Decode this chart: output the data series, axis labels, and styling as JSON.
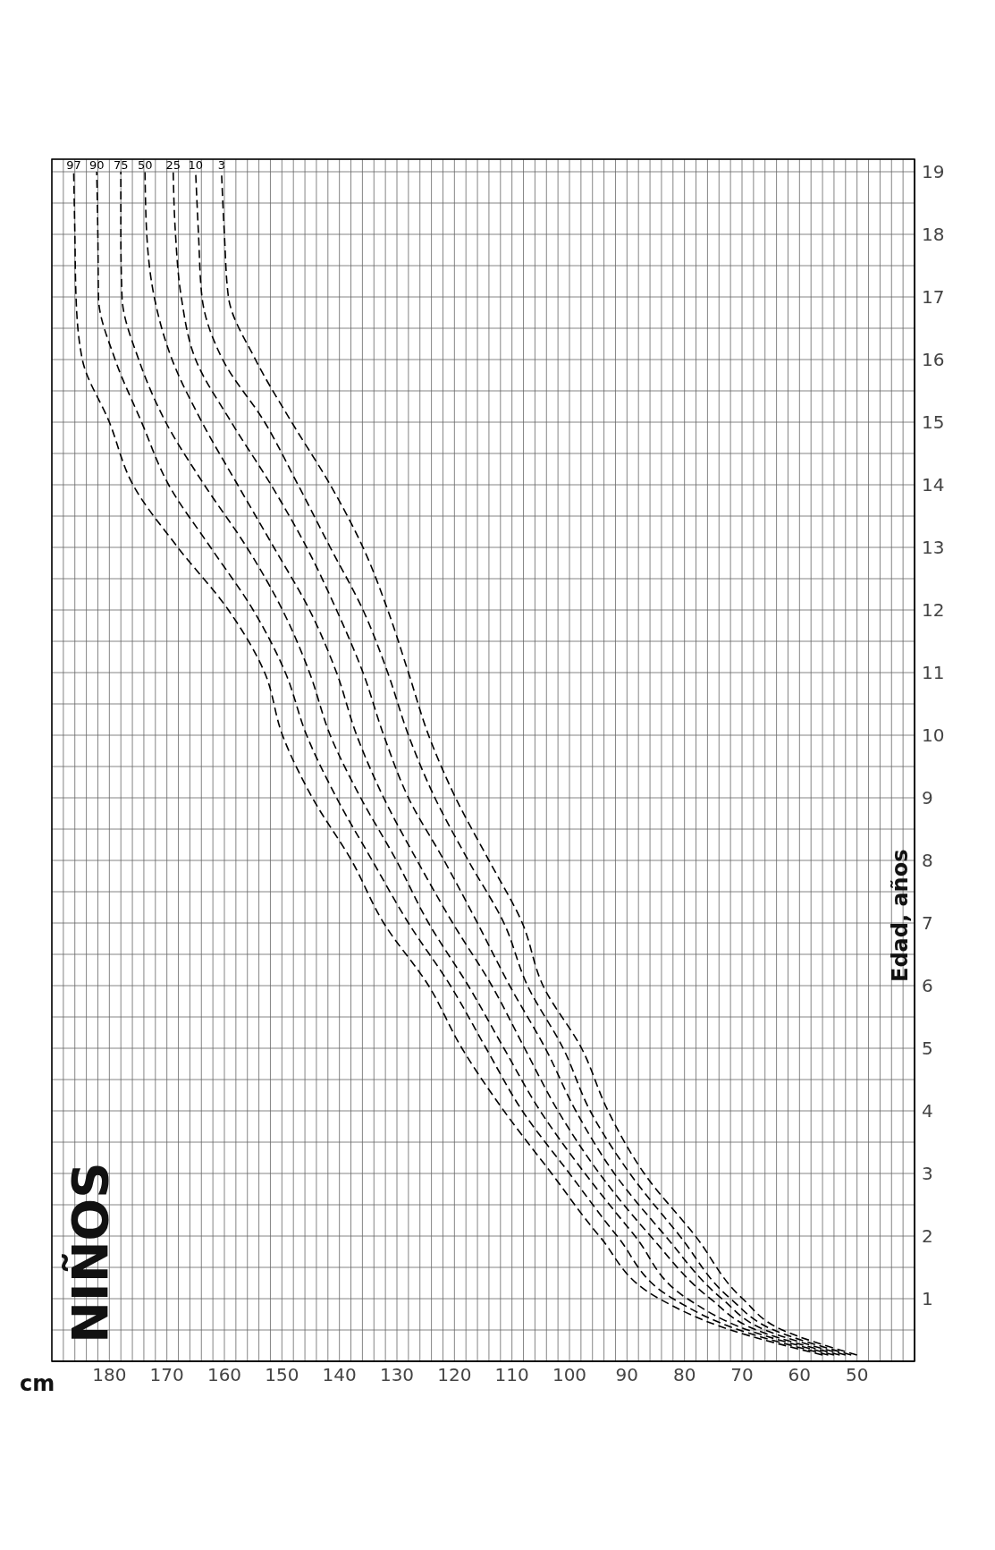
{
  "chart_data": {
    "type": "line",
    "title": "NIÑOS",
    "xlabel": "cm",
    "ylabel": "Edad, años",
    "series": [
      {
        "name": "97",
        "color": "#000000",
        "x": [
          56,
          72,
          84.4,
          94.8,
          103.1,
          111.4,
          118.7,
          124.5,
          132.3,
          137.9,
          144.7,
          149.9,
          153,
          159.3,
          168.1,
          175.9,
          180,
          184.7,
          185.8,
          186,
          186.2
        ],
        "values": [
          0.1,
          0.5,
          1,
          2,
          3,
          4,
          5,
          6,
          7,
          8,
          9,
          10,
          11,
          12,
          13,
          14,
          15,
          16,
          17,
          18,
          19
        ]
      },
      {
        "name": "90",
        "color": "#000000",
        "x": [
          55,
          70.5,
          82,
          91.7,
          100,
          108.2,
          114.5,
          120.7,
          128,
          134.3,
          140.5,
          145.7,
          149.4,
          155,
          162.4,
          169.7,
          174.4,
          179,
          181.9,
          182,
          182.2
        ],
        "values": [
          0.1,
          0.5,
          1,
          2,
          3,
          4,
          5,
          6,
          7,
          8,
          9,
          10,
          11,
          12,
          13,
          14,
          15,
          16,
          17,
          18,
          19
        ]
      },
      {
        "name": "75",
        "color": "#000000",
        "x": [
          54,
          69,
          79.5,
          88.6,
          97.3,
          105.1,
          111.4,
          117.6,
          124.5,
          130.1,
          136.3,
          141.6,
          145.2,
          149.9,
          156.1,
          163.5,
          170.2,
          174.9,
          177.8,
          178,
          178
        ],
        "values": [
          0.1,
          0.5,
          1,
          2,
          3,
          4,
          5,
          6,
          7,
          8,
          9,
          10,
          11,
          12,
          13,
          14,
          15,
          16,
          17,
          18,
          19
        ]
      },
      {
        "name": "50",
        "color": "#000000",
        "x": [
          53,
          67.5,
          75.5,
          85.9,
          94.8,
          102,
          107.8,
          113.5,
          120.3,
          126.5,
          132.3,
          137,
          140.5,
          145.2,
          151.4,
          157.7,
          163.9,
          169.1,
          172.2,
          173.5,
          173.8
        ],
        "values": [
          0.1,
          0.5,
          1,
          2,
          3,
          4,
          5,
          6,
          7,
          8,
          9,
          10,
          11,
          12,
          13,
          14,
          15,
          16,
          17,
          18,
          19
        ]
      },
      {
        "name": "25",
        "color": "#000000",
        "x": [
          52,
          66,
          73.5,
          83.3,
          92.2,
          98.9,
          104.2,
          110.4,
          116,
          121.8,
          128,
          132.3,
          135.9,
          140.5,
          145.7,
          151.9,
          158.8,
          165,
          167.5,
          168.5,
          168.9
        ],
        "values": [
          0.1,
          0.5,
          1,
          2,
          3,
          4,
          5,
          6,
          7,
          8,
          9,
          10,
          11,
          12,
          13,
          14,
          15,
          16,
          17,
          18,
          19
        ]
      },
      {
        "name": "10",
        "color": "#000000",
        "x": [
          51,
          64.5,
          72,
          80.8,
          89.5,
          96.4,
          101.1,
          107.3,
          111.4,
          117.6,
          123.4,
          128,
          131.6,
          135.9,
          141.6,
          147.2,
          153,
          160.3,
          163.9,
          164.5,
          165
        ],
        "values": [
          0.1,
          0.5,
          1,
          2,
          3,
          4,
          5,
          6,
          7,
          8,
          9,
          10,
          11,
          12,
          13,
          14,
          15,
          16,
          17,
          18,
          19
        ]
      },
      {
        "name": "3",
        "color": "#000000",
        "x": [
          50,
          63,
          69.9,
          78.1,
          87,
          93.3,
          97.9,
          104.6,
          108.2,
          114,
          119.8,
          124.5,
          128,
          131.6,
          135.9,
          141.6,
          148.3,
          154.6,
          159.3,
          160,
          160.5
        ],
        "values": [
          0.1,
          0.5,
          1,
          2,
          3,
          4,
          5,
          6,
          7,
          8,
          9,
          10,
          11,
          12,
          13,
          14,
          15,
          16,
          17,
          18,
          19
        ]
      }
    ],
    "ylim": [
      0,
      19.2
    ],
    "yticks": [
      {
        "value": 0.5,
        "label": null
      },
      1,
      {
        "value": 1.5,
        "label": null
      },
      2,
      {
        "value": 2.5,
        "label": null
      },
      3,
      {
        "value": 3.5,
        "label": null
      },
      4,
      {
        "value": 4.5,
        "label": null
      },
      5,
      {
        "value": 5.5,
        "label": null
      },
      6,
      {
        "value": 6.5,
        "label": null
      },
      7,
      {
        "value": 7.5,
        "label": null
      },
      8,
      {
        "value": 8.5,
        "label": null
      },
      9,
      {
        "value": 9.5,
        "label": null
      },
      10,
      {
        "value": 10.5,
        "label": null
      },
      11,
      {
        "value": 11.5,
        "label": null
      },
      12,
      {
        "value": 12.5,
        "label": null
      },
      13,
      {
        "value": 13.5,
        "label": null
      },
      14,
      {
        "value": 14.5,
        "label": null
      },
      15,
      {
        "value": 15.5,
        "label": null
      },
      16,
      {
        "value": 16.5,
        "label": null
      },
      17,
      {
        "value": 17.5,
        "label": null
      },
      18,
      {
        "value": 18.5,
        "label": null
      },
      19
    ],
    "xlim": [
      190,
      40
    ],
    "xticks": [
      {
        "value": 42,
        "label": null
      },
      {
        "value": 44,
        "label": null
      },
      {
        "value": 46,
        "label": null
      },
      {
        "value": 48,
        "label": null
      },
      50,
      {
        "value": 52,
        "label": null
      },
      {
        "value": 54,
        "label": null
      },
      {
        "value": 56,
        "label": null
      },
      {
        "value": 58,
        "label": null
      },
      60,
      {
        "value": 62,
        "label": null
      },
      {
        "value": 64,
        "label": null
      },
      {
        "value": 66,
        "label": null
      },
      {
        "value": 68,
        "label": null
      },
      70,
      {
        "value": 72,
        "label": null
      },
      {
        "value": 74,
        "label": null
      },
      {
        "value": 76,
        "label": null
      },
      {
        "value": 78,
        "label": null
      },
      80,
      {
        "value": 82,
        "label": null
      },
      {
        "value": 84,
        "label": null
      },
      {
        "value": 86,
        "label": null
      },
      {
        "value": 88,
        "label": null
      },
      90,
      {
        "value": 92,
        "label": null
      },
      {
        "value": 94,
        "label": null
      },
      {
        "value": 96,
        "label": null
      },
      {
        "value": 98,
        "label": null
      },
      100,
      {
        "value": 102,
        "label": null
      },
      {
        "value": 104,
        "label": null
      },
      {
        "value": 106,
        "label": null
      },
      {
        "value": 108,
        "label": null
      },
      110,
      {
        "value": 112,
        "label": null
      },
      {
        "value": 114,
        "label": null
      },
      {
        "value": 116,
        "label": null
      },
      {
        "value": 118,
        "label": null
      },
      120,
      {
        "value": 122,
        "label": null
      },
      {
        "value": 124,
        "label": null
      },
      {
        "value": 126,
        "label": null
      },
      {
        "value": 128,
        "label": null
      },
      130,
      {
        "value": 132,
        "label": null
      },
      {
        "value": 134,
        "label": null
      },
      {
        "value": 136,
        "label": null
      },
      {
        "value": 138,
        "label": null
      },
      140,
      {
        "value": 142,
        "label": null
      },
      {
        "value": 144,
        "label": null
      },
      {
        "value": 146,
        "label": null
      },
      {
        "value": 148,
        "label": null
      },
      150,
      {
        "value": 152,
        "label": null
      },
      {
        "value": 154,
        "label": null
      },
      {
        "value": 156,
        "label": null
      },
      {
        "value": 158,
        "label": null
      },
      160,
      {
        "value": 162,
        "label": null
      },
      {
        "value": 164,
        "label": null
      },
      {
        "value": 166,
        "label": null
      },
      {
        "value": 168,
        "label": null
      },
      170,
      {
        "value": 172,
        "label": null
      },
      {
        "value": 174,
        "label": null
      },
      {
        "value": 176,
        "label": null
      },
      {
        "value": 178,
        "label": null
      },
      180,
      {
        "value": 182,
        "label": null
      },
      {
        "value": 184,
        "label": null
      },
      {
        "value": 186,
        "label": null
      },
      {
        "value": 188,
        "label": null
      }
    ],
    "grid": true,
    "legend": false,
    "marker": "none",
    "line_style": "dashed"
  }
}
